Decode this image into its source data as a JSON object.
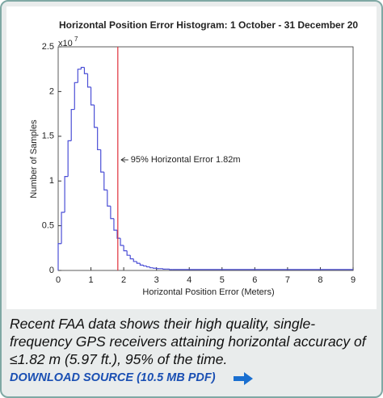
{
  "chart_data": {
    "type": "histogram",
    "title": "Horizontal Position Error Histogram: 1 October - 31 December 20",
    "x_label": "Horizontal Position Error (Meters)",
    "y_label": "Number of Samples",
    "y_multiplier": {
      "base": "x10",
      "exponent": "7"
    },
    "bins": [
      0,
      0.1,
      0.2,
      0.3,
      0.4,
      0.5,
      0.6,
      0.7,
      0.8,
      0.9,
      1.0,
      1.1,
      1.2,
      1.3,
      1.4,
      1.5,
      1.6,
      1.7,
      1.8,
      1.9,
      2.0,
      2.1,
      2.2,
      2.3,
      2.4,
      2.5,
      2.6,
      2.7,
      2.8,
      2.9,
      3.0,
      3.1,
      3.2,
      3.3,
      3.4,
      3.5,
      9
    ],
    "values": [
      0.3,
      0.65,
      1.05,
      1.45,
      1.8,
      2.1,
      2.25,
      2.27,
      2.2,
      2.05,
      1.85,
      1.6,
      1.35,
      1.1,
      0.9,
      0.72,
      0.58,
      0.45,
      0.36,
      0.28,
      0.22,
      0.17,
      0.13,
      0.1,
      0.08,
      0.06,
      0.05,
      0.04,
      0.03,
      0.025,
      0.02,
      0.02,
      0.015,
      0.015,
      0.01,
      0.01
    ],
    "color": "#4b4fd6",
    "threshold": {
      "value": 1.82,
      "label": "95% Horizontal Error 1.82m",
      "color": "#e0303a"
    },
    "xlim": [
      0,
      9
    ],
    "xticks": [
      0,
      1,
      2,
      3,
      4,
      5,
      6,
      7,
      8,
      9
    ],
    "ylim": [
      0,
      2.5
    ],
    "yticks": [
      0,
      0.5,
      1,
      1.5,
      2,
      2.5
    ]
  },
  "caption": "Recent FAA data shows their high quality, single-frequency GPS receivers attaining horizontal accuracy of ≤1.82 m (5.97 ft.), 95% of the time.",
  "link": "DOWNLOAD SOURCE (10.5 MB PDF)"
}
